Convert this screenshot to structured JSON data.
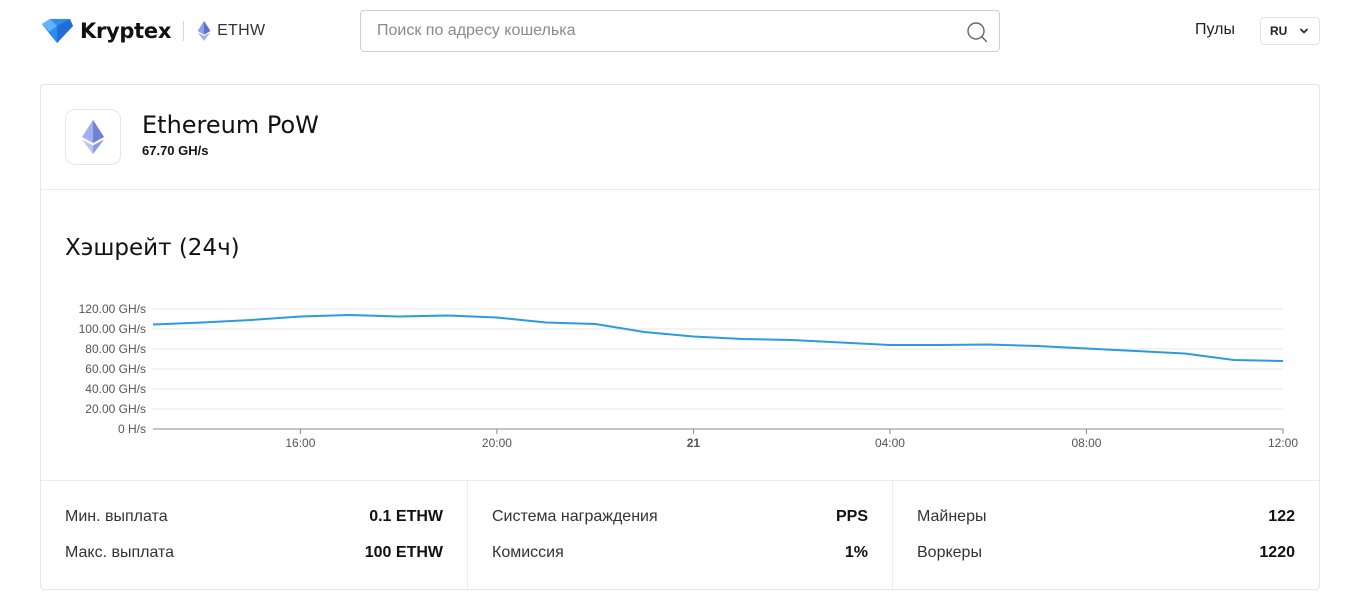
{
  "header": {
    "brand_name": "Kryptex",
    "coin_label": "ETHW",
    "search_placeholder": "Поиск по адресу кошелька",
    "nav_pools": "Пулы",
    "language": "RU"
  },
  "coin": {
    "name": "Ethereum PoW",
    "hashrate": "67.70 GH/s"
  },
  "chart_title": "Хэшрейт (24ч)",
  "chart_data": {
    "type": "line",
    "title": "Хэшрейт (24ч)",
    "y_unit": "GH/s",
    "ylim": [
      0,
      120
    ],
    "y_ticks": [
      "120.00 GH/s",
      "100.00 GH/s",
      "80.00 GH/s",
      "60.00 GH/s",
      "40.00 GH/s",
      "20.00 GH/s",
      "0 H/s"
    ],
    "y_tick_values": [
      120,
      100,
      80,
      60,
      40,
      20,
      0
    ],
    "x_ticks": [
      {
        "label": "16:00",
        "hour": 16,
        "bold": false
      },
      {
        "label": "20:00",
        "hour": 20,
        "bold": false
      },
      {
        "label": "21",
        "hour": 24,
        "bold": true
      },
      {
        "label": "04:00",
        "hour": 28,
        "bold": false
      },
      {
        "label": "08:00",
        "hour": 32,
        "bold": false
      },
      {
        "label": "12:00",
        "hour": 36,
        "bold": false
      }
    ],
    "xlim": [
      13,
      36
    ],
    "grid": true,
    "color": "#2b9be0",
    "series": [
      {
        "x": [
          13,
          14,
          15,
          16,
          17,
          18,
          19,
          20,
          21,
          22,
          23,
          24,
          25,
          26,
          27,
          28,
          29,
          30,
          31,
          32,
          33,
          34,
          35,
          36
        ],
        "values": [
          104.5,
          106.5,
          109,
          112.5,
          114,
          112.5,
          113.5,
          111.5,
          106.5,
          105,
          97,
          92.5,
          90,
          89,
          86.5,
          84,
          84,
          84.5,
          83,
          80.5,
          78,
          75.5,
          69,
          68
        ]
      }
    ]
  },
  "stats": {
    "col1": [
      {
        "label": "Мин. выплата",
        "value": "0.1 ETHW"
      },
      {
        "label": "Макс. выплата",
        "value": "100 ETHW"
      }
    ],
    "col2": [
      {
        "label": "Система награждения",
        "value": "PPS"
      },
      {
        "label": "Комиссия",
        "value": "1%"
      }
    ],
    "col3": [
      {
        "label": "Майнеры",
        "value": "122"
      },
      {
        "label": "Воркеры",
        "value": "1220"
      }
    ]
  }
}
